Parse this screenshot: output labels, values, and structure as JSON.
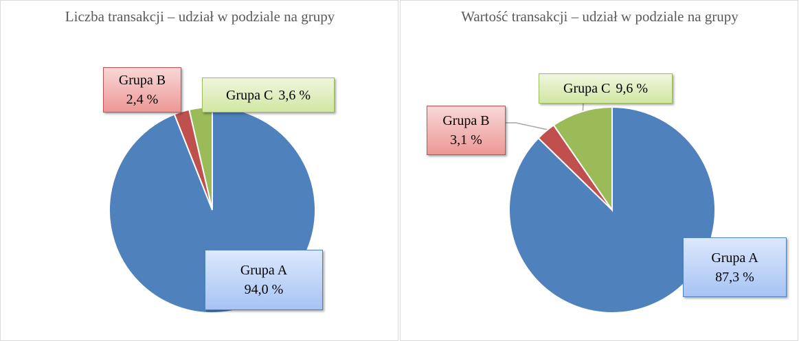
{
  "chart_data": [
    {
      "type": "pie",
      "title": "Liczba transakcji – udział w podziale na grupy",
      "categories": [
        "Grupa A",
        "Grupa B",
        "Grupa C"
      ],
      "values": [
        94.0,
        2.4,
        3.6
      ],
      "value_labels": [
        "94,0 %",
        "2,4 %",
        "3,6 %"
      ],
      "colors": [
        "#4f81bd",
        "#c0504d",
        "#9bbb59"
      ]
    },
    {
      "type": "pie",
      "title": "Wartość transakcji – udział w podziale na grupy",
      "categories": [
        "Grupa A",
        "Grupa B",
        "Grupa C"
      ],
      "values": [
        87.3,
        3.1,
        9.6
      ],
      "value_labels": [
        "87,3 %",
        "3,1 %",
        "9,6 %"
      ],
      "colors": [
        "#4f81bd",
        "#c0504d",
        "#9bbb59"
      ]
    }
  ]
}
